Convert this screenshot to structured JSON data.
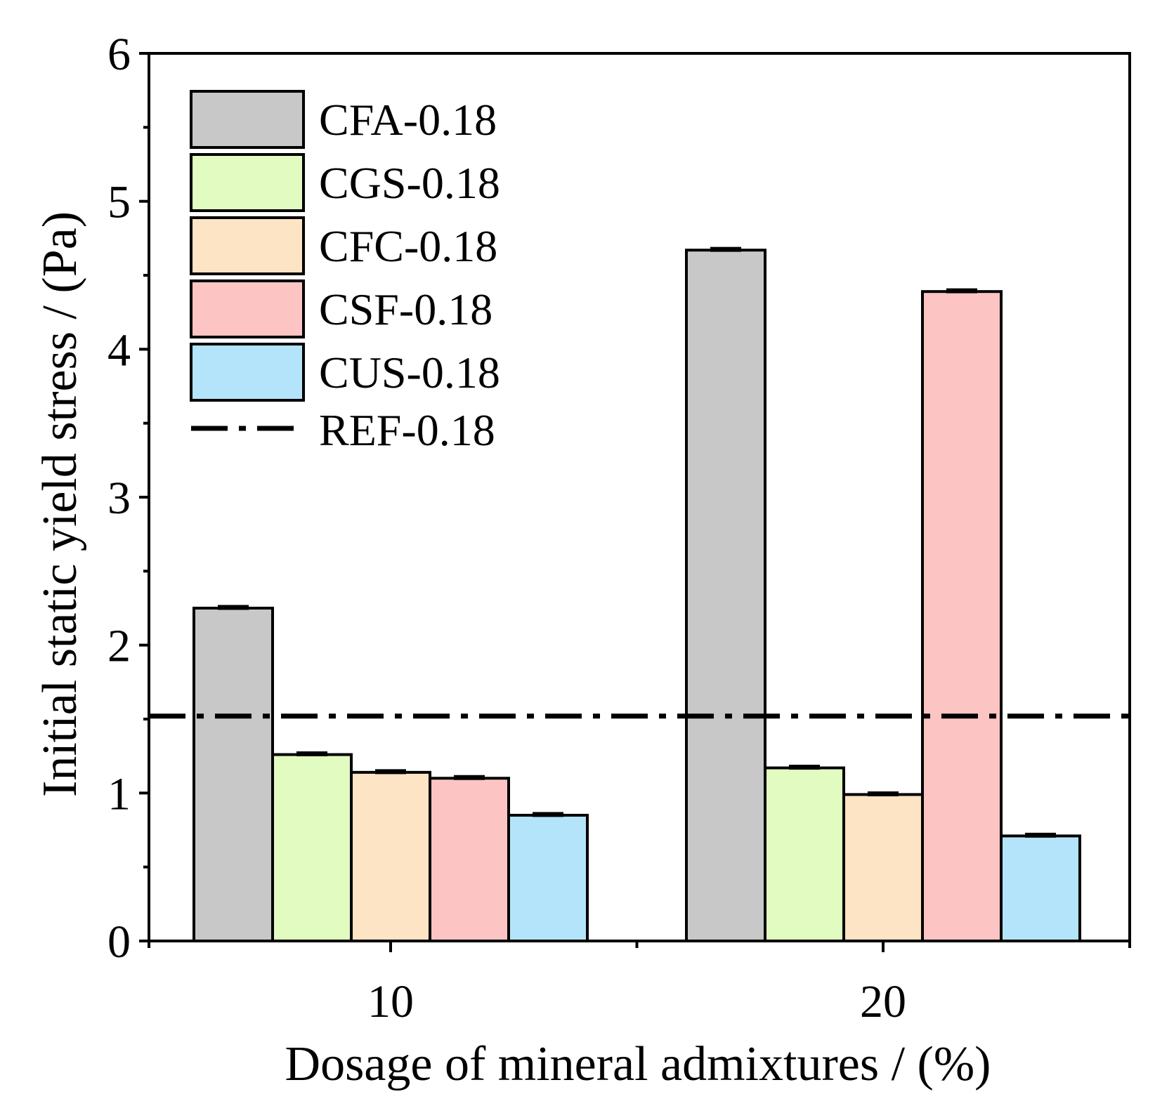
{
  "chart_data": {
    "type": "bar",
    "title": "",
    "xlabel": "Dosage of mineral admixtures / (%)",
    "ylabel": "Initial static yield stress / (Pa)",
    "categories": [
      "10",
      "20"
    ],
    "ylim": [
      0,
      6
    ],
    "yticks": [
      "0",
      "1",
      "2",
      "3",
      "4",
      "5",
      "6"
    ],
    "grid": false,
    "legend_position": "top-left",
    "series": [
      {
        "name": "CFA-0.18",
        "color": "#c8c8c8",
        "values": [
          2.25,
          4.67
        ]
      },
      {
        "name": "CGS-0.18",
        "color": "#e2fbc0",
        "values": [
          1.26,
          1.17
        ]
      },
      {
        "name": "CFC-0.18",
        "color": "#fde4c4",
        "values": [
          1.14,
          0.99
        ]
      },
      {
        "name": "CSF-0.18",
        "color": "#fdc4c4",
        "values": [
          1.1,
          4.39
        ]
      },
      {
        "name": "CUS-0.18",
        "color": "#b4e4fa",
        "values": [
          0.85,
          0.71
        ]
      }
    ],
    "reference_line": {
      "name": "REF-0.18",
      "value": 1.52,
      "style": "dash-dot"
    }
  }
}
